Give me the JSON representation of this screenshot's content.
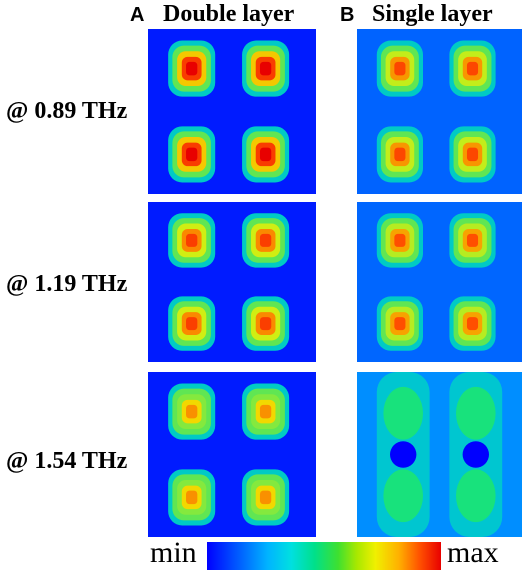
{
  "columns": {
    "a": {
      "letter": "A",
      "title": "Double layer"
    },
    "b": {
      "letter": "B",
      "title": "Single layer"
    }
  },
  "rows": [
    {
      "label": "@ 0.89 THz"
    },
    {
      "label": "@ 1.19 THz"
    },
    {
      "label": "@ 1.54 THz"
    }
  ],
  "colorbar": {
    "min_label": "min",
    "max_label": "max",
    "colors": [
      "#0000ff",
      "#00b4ff",
      "#00e08a",
      "#f0f000",
      "#ff5000",
      "#e80000"
    ]
  },
  "maps": [
    {
      "row": 0,
      "layer": "double",
      "intensity": 1.0
    },
    {
      "row": 0,
      "layer": "single",
      "intensity": 0.75
    },
    {
      "row": 1,
      "layer": "double",
      "intensity": 0.78
    },
    {
      "row": 1,
      "layer": "single",
      "intensity": 0.72
    },
    {
      "row": 2,
      "layer": "double",
      "intensity": 0.6
    },
    {
      "row": 2,
      "layer": "single",
      "intensity": 0.35
    }
  ]
}
